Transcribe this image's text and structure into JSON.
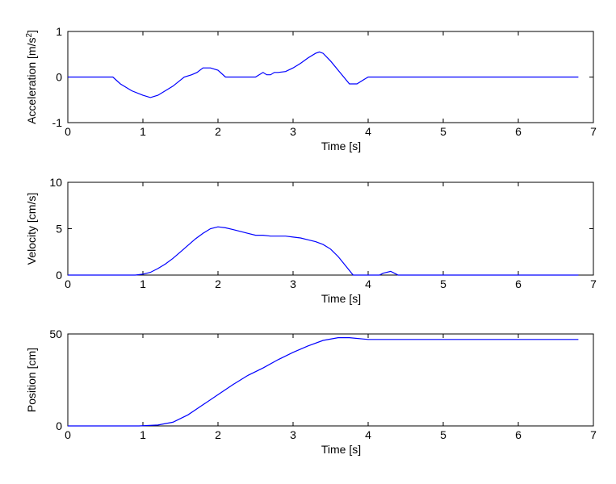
{
  "chart_data": [
    {
      "type": "line",
      "xlabel": "Time [s]",
      "ylabel": "Acceleration [m/s²]",
      "ylabel_base": "Acceleration [m/s",
      "ylabel_sup": "2",
      "ylabel_tail": "]",
      "xlim": [
        0,
        7
      ],
      "ylim": [
        -1,
        1
      ],
      "xticks": [
        "0",
        "1",
        "2",
        "3",
        "4",
        "5",
        "6",
        "7"
      ],
      "yticks": [
        "-1",
        "0",
        "1"
      ],
      "grid": false,
      "series": [
        {
          "color": "#0000ff",
          "x": [
            0,
            0.6,
            0.7,
            0.85,
            1.0,
            1.1,
            1.2,
            1.4,
            1.55,
            1.65,
            1.72,
            1.8,
            1.9,
            2.0,
            2.1,
            2.2,
            2.35,
            2.5,
            2.6,
            2.65,
            2.7,
            2.75,
            2.8,
            2.9,
            3.0,
            3.1,
            3.2,
            3.3,
            3.35,
            3.4,
            3.5,
            3.6,
            3.75,
            3.85,
            3.95,
            4.0,
            6.8
          ],
          "y": [
            0,
            0,
            -0.15,
            -0.3,
            -0.4,
            -0.45,
            -0.4,
            -0.2,
            0.0,
            0.05,
            0.1,
            0.2,
            0.2,
            0.15,
            0.0,
            0.0,
            0.0,
            0.0,
            0.1,
            0.05,
            0.05,
            0.1,
            0.1,
            0.12,
            0.2,
            0.3,
            0.42,
            0.52,
            0.55,
            0.52,
            0.35,
            0.15,
            -0.15,
            -0.15,
            -0.05,
            0.0,
            0.0
          ]
        }
      ]
    },
    {
      "type": "line",
      "xlabel": "Time [s]",
      "ylabel": "Velocity [cm/s]",
      "xlim": [
        0,
        7
      ],
      "ylim": [
        0,
        10
      ],
      "xticks": [
        "0",
        "1",
        "2",
        "3",
        "4",
        "5",
        "6",
        "7"
      ],
      "yticks": [
        "0",
        "5",
        "10"
      ],
      "grid": false,
      "series": [
        {
          "color": "#0000ff",
          "x": [
            0,
            0.9,
            1.0,
            1.1,
            1.2,
            1.3,
            1.4,
            1.5,
            1.6,
            1.7,
            1.8,
            1.9,
            2.0,
            2.1,
            2.2,
            2.3,
            2.4,
            2.5,
            2.6,
            2.7,
            2.8,
            2.9,
            3.0,
            3.1,
            3.2,
            3.3,
            3.4,
            3.5,
            3.6,
            3.7,
            3.8,
            4.15,
            4.2,
            4.3,
            4.35,
            4.4,
            6.8
          ],
          "y": [
            0,
            0,
            0.1,
            0.3,
            0.7,
            1.2,
            1.8,
            2.5,
            3.2,
            3.9,
            4.5,
            5.0,
            5.2,
            5.1,
            4.9,
            4.7,
            4.5,
            4.3,
            4.3,
            4.2,
            4.2,
            4.2,
            4.1,
            4.0,
            3.8,
            3.6,
            3.3,
            2.8,
            2.0,
            1.0,
            0.0,
            0.0,
            0.2,
            0.4,
            0.2,
            0.0,
            0.0
          ]
        }
      ]
    },
    {
      "type": "line",
      "xlabel": "Time [s]",
      "ylabel": "Position [cm]",
      "xlim": [
        0,
        7
      ],
      "ylim": [
        0,
        50
      ],
      "xticks": [
        "0",
        "1",
        "2",
        "3",
        "4",
        "5",
        "6",
        "7"
      ],
      "yticks": [
        "0",
        "50"
      ],
      "grid": false,
      "series": [
        {
          "color": "#0000ff",
          "x": [
            0,
            0.95,
            1.2,
            1.4,
            1.6,
            1.8,
            2.0,
            2.2,
            2.4,
            2.6,
            2.8,
            3.0,
            3.2,
            3.4,
            3.6,
            3.75,
            4.0,
            6.8
          ],
          "y": [
            0,
            0,
            0.5,
            2.0,
            6.0,
            11.5,
            17.0,
            22.5,
            27.5,
            31.5,
            36.0,
            40.0,
            43.5,
            46.5,
            48.0,
            48.0,
            47.0,
            47.0
          ]
        }
      ]
    }
  ]
}
